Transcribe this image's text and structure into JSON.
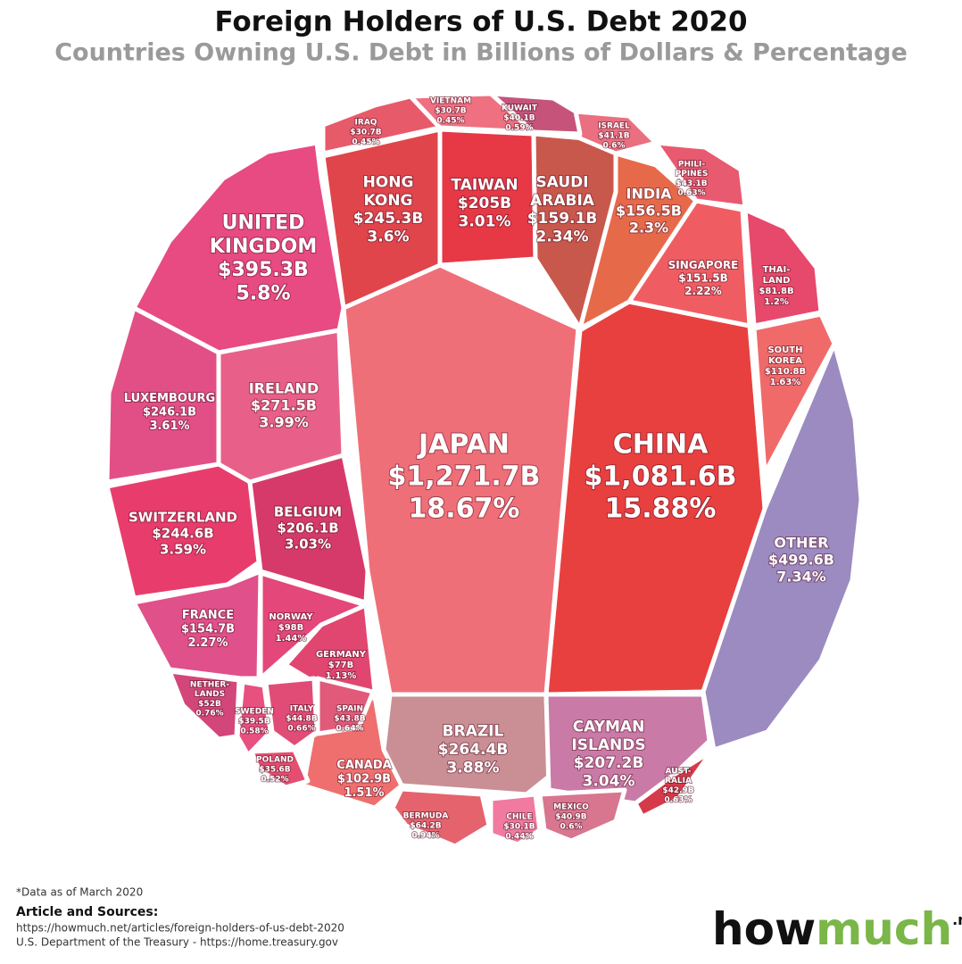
{
  "chart_data": {
    "type": "voronoi-treemap",
    "title": "Foreign Holders of U.S. Debt 2020",
    "subtitle": "Countries Owning U.S. Debt in Billions of Dollars & Percentage",
    "categories": [
      [
        "JAPAN"
      ],
      [
        "CHINA"
      ],
      [
        "OTHER"
      ],
      [
        "UNITED",
        "KINGDOM"
      ],
      [
        "IRELAND"
      ],
      [
        "BRAZIL"
      ],
      [
        "LUXEMBOURG"
      ],
      [
        "HONG",
        "KONG"
      ],
      [
        "SWITZERLAND"
      ],
      [
        "CAYMAN",
        "ISLANDS"
      ],
      [
        "BELGIUM"
      ],
      [
        "TAIWAN"
      ],
      [
        "SAUDI",
        "ARABIA"
      ],
      [
        "INDIA"
      ],
      [
        "FRANCE"
      ],
      [
        "SINGAPORE"
      ],
      [
        "SOUTH",
        "KOREA"
      ],
      [
        "CANADA"
      ],
      [
        "NORWAY"
      ],
      [
        "THAI-",
        "LAND"
      ],
      [
        "GERMANY"
      ],
      [
        "BERMUDA"
      ],
      [
        "NETHER-",
        "LANDS"
      ],
      [
        "ITALY"
      ],
      [
        "SPAIN"
      ],
      [
        "PHILI-",
        "PPINES"
      ],
      [
        "AUST-",
        "RALIA"
      ],
      [
        "ISRAEL"
      ],
      [
        "MEXICO"
      ],
      [
        "KUWAIT"
      ],
      [
        "SWEDEN"
      ],
      [
        "POLAND"
      ],
      [
        "IRAQ"
      ],
      [
        "VIETNAM"
      ],
      [
        "CHILE"
      ]
    ],
    "values": [
      1271.7,
      1081.6,
      499.6,
      395.3,
      271.5,
      264.4,
      246.1,
      245.3,
      244.6,
      207.2,
      206.1,
      205,
      159.1,
      156.5,
      154.7,
      151.5,
      110.8,
      102.9,
      98,
      81.8,
      77,
      64.2,
      52,
      44.8,
      43.8,
      43.1,
      42.9,
      41.1,
      40.9,
      40.1,
      39.5,
      35.6,
      30.7,
      30.7,
      30.1
    ],
    "value_labels": [
      "$1,271.7B",
      "$1,081.6B",
      "$499.6B",
      "$395.3B",
      "$271.5B",
      "$264.4B",
      "$246.1B",
      "$245.3B",
      "$244.6B",
      "$207.2B",
      "$206.1B",
      "$205B",
      "$159.1B",
      "$156.5B",
      "$154.7B",
      "$151.5B",
      "$110.8B",
      "$102.9B",
      "$98B",
      "$81.8B",
      "$77B",
      "$64.2B",
      "$52B",
      "$44.8B",
      "$43.8B",
      "$43.1B",
      "$42.9B",
      "$41.1B",
      "$40.9B",
      "$40.1B",
      "$39.5B",
      "$35.6B",
      "$30.7B",
      "$30.7B",
      "$30.1B"
    ],
    "shares": [
      18.67,
      15.88,
      7.34,
      5.8,
      3.99,
      3.88,
      3.61,
      3.6,
      3.59,
      3.04,
      3.03,
      3.01,
      2.34,
      2.3,
      2.27,
      2.22,
      1.63,
      1.51,
      1.44,
      1.2,
      1.13,
      0.94,
      0.76,
      0.66,
      0.64,
      0.63,
      0.63,
      0.6,
      0.6,
      0.59,
      0.58,
      0.52,
      0.45,
      0.45,
      0.44
    ],
    "share_labels": [
      "18.67%",
      "15.88%",
      "7.34%",
      "5.8%",
      "3.99%",
      "3.88%",
      "3.61%",
      "3.6%",
      "3.59%",
      "3.04%",
      "3.03%",
      "3.01%",
      "2.34%",
      "2.3%",
      "2.27%",
      "2.22%",
      "1.63%",
      "1.51%",
      "1.44%",
      "1.2%",
      "1.13%",
      "0.94%",
      "0.76%",
      "0.66%",
      "0.64%",
      "0.63%",
      "0.63%",
      "0.6%",
      "0.6%",
      "0.59%",
      "0.58%",
      "0.52%",
      "0.45%",
      "0.45%",
      "0.44%"
    ],
    "colors": [
      "#ef6f78",
      "#e8403f",
      "#9b8bc0",
      "#e84a82",
      "#e8608a",
      "#c98f95",
      "#e24f87",
      "#e0454b",
      "#e83d6c",
      "#c97aa6",
      "#d63a6a",
      "#e63845",
      "#c9584c",
      "#e66a4a",
      "#e0508a",
      "#ef5d63",
      "#f06a6a",
      "#ef6f6e",
      "#e4477a",
      "#e6496b",
      "#e14670",
      "#e5636d",
      "#d3467a",
      "#e14c76",
      "#e25a7a",
      "#e85a6f",
      "#d63a4a",
      "#ea6f80",
      "#d8758f",
      "#c6547a",
      "#e85080",
      "#e44e70",
      "#e75a6a",
      "#ef7080",
      "#f07aa0"
    ],
    "footnote": "*Data as of March 2020",
    "sources_heading": "Article and Sources:",
    "sources": [
      "https://howmuch.net/articles/foreign-holders-of-us-debt-2020",
      "U.S. Department of the Treasury - https://home.treasury.gov"
    ],
    "logo": [
      "how",
      "much",
      ".net"
    ]
  }
}
